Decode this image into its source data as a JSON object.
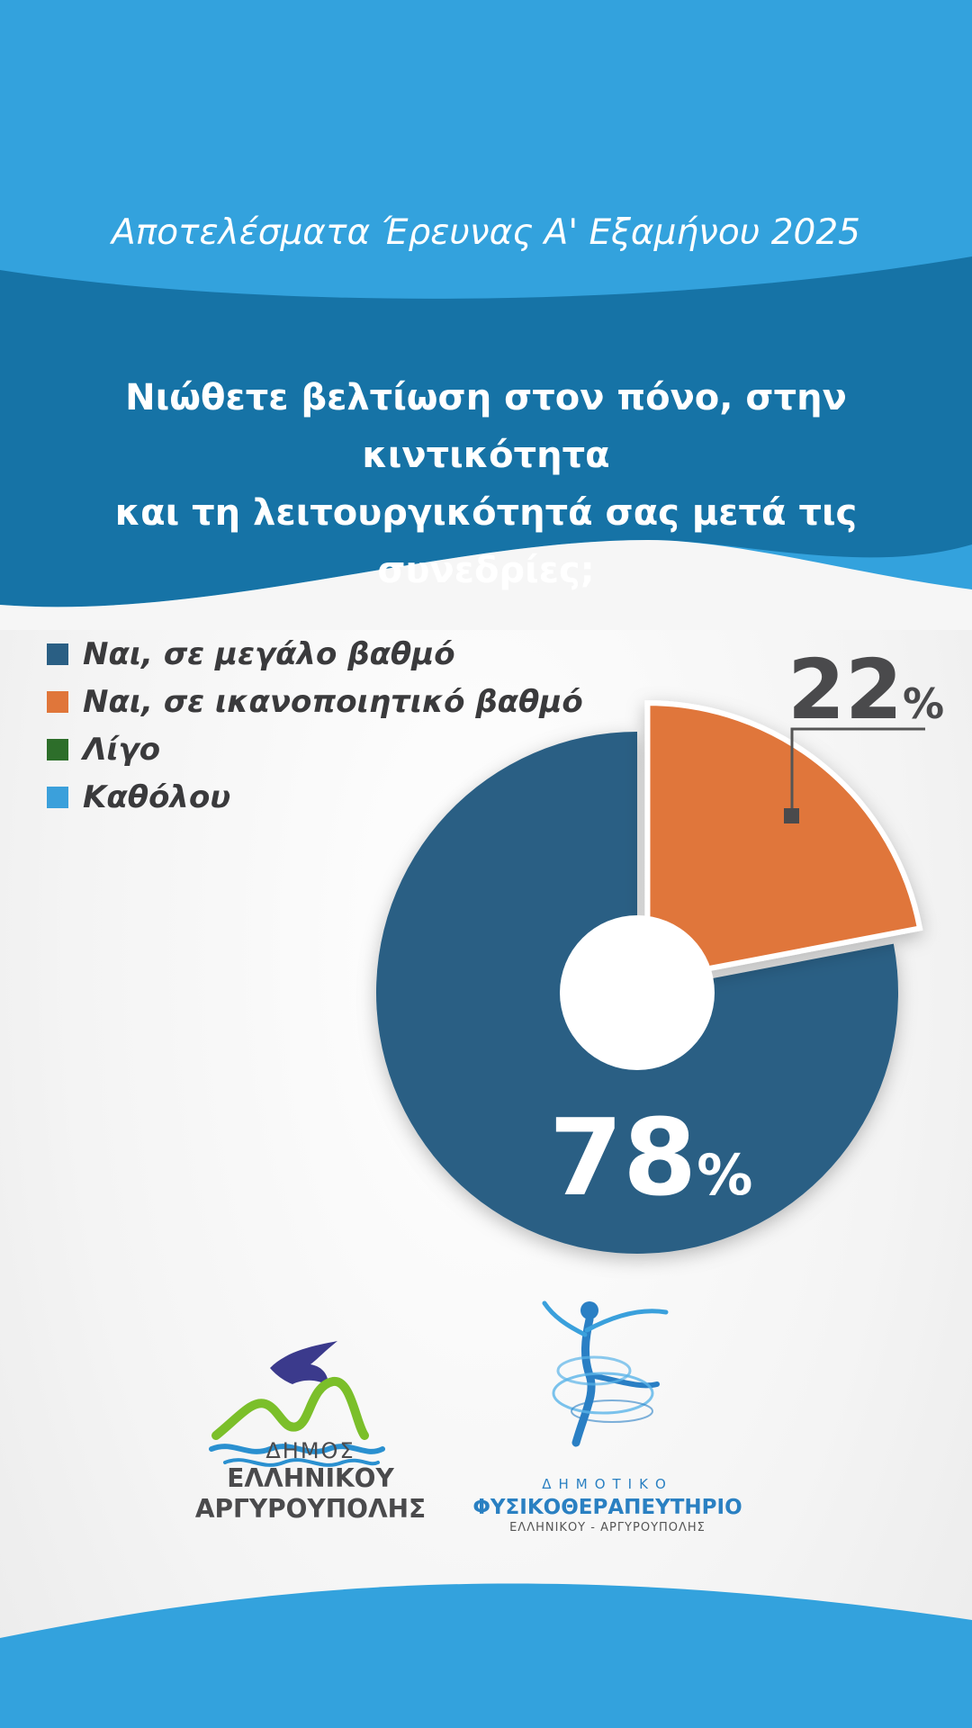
{
  "header": {
    "subtitle": "Αποτελέσματα Έρευνας Α' Εξαμήνου 2025",
    "question_line1": "Νιώθετε βελτίωση στον πόνο, στην κιντικότητα",
    "question_line2": "και τη λειτουργικότητά σας μετά τις συνεδρίες;"
  },
  "chart_data": {
    "type": "pie",
    "categories": [
      "Ναι, σε μεγάλο βαθμό",
      "Ναι, σε ικανοποιητικό βαθμό",
      "Λίγο",
      "Καθόλου"
    ],
    "values": [
      78,
      22,
      0,
      0
    ],
    "colors": [
      "#2a5f84",
      "#e0763a",
      "#2d6e2a",
      "#3ba0db"
    ],
    "labels": {
      "big": "78",
      "small": "22",
      "percent_sign": "%"
    },
    "legend_position": "top-left"
  },
  "logos": {
    "left": {
      "line1": "ΔΗΜΟΣ",
      "line2": "ΕΛΛΗΝΙΚΟΥ",
      "line3": "ΑΡΓΥΡΟΥΠΟΛΗΣ"
    },
    "right": {
      "line1": "ΔΗΜΟΤΙΚΟ",
      "line2": "ΦΥΣΙΚΟΘΕΡΑΠΕΥΤΗΡΙΟ",
      "line3": "ΕΛΛΗΝΙΚΟΥ - ΑΡΓΥΡΟΥΠΟΛΗΣ"
    }
  },
  "colors": {
    "sky_blue": "#33a2dd",
    "deep_blue": "#1673a6",
    "dark_text": "#3a3a3c"
  }
}
